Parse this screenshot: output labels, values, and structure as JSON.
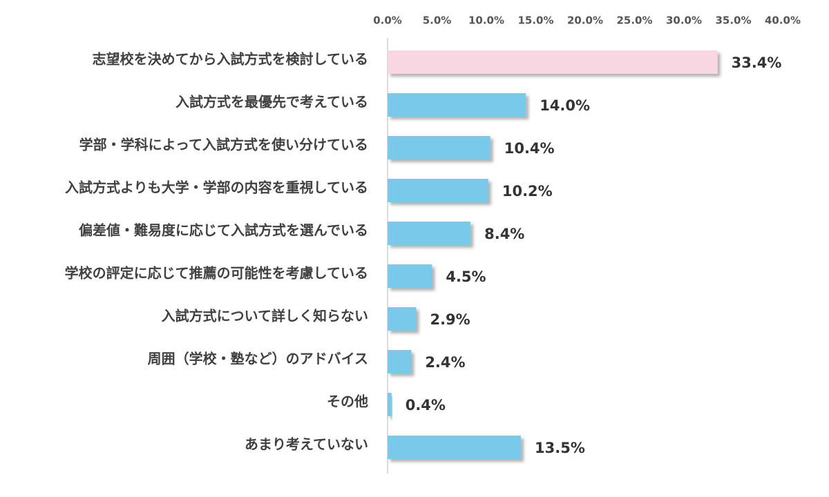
{
  "chart_data": {
    "type": "hbar",
    "categories": [
      "志望校を決めてから入試方式を検討している",
      "入試方式を最優先で考えている",
      "学部・学科によって入試方式を使い分けている",
      "入試方式よりも大学・学部の内容を重視している",
      "偏差値・難易度に応じて入試方式を選んでいる",
      "学校の評定に応じて推薦の可能性を考慮している",
      "入試方式について詳しく知らない",
      "周囲（学校・塾など）のアドバイス",
      "その他",
      "あまり考えていない"
    ],
    "values": [
      33.4,
      14.0,
      10.4,
      10.2,
      8.4,
      4.5,
      2.9,
      2.4,
      0.4,
      13.5
    ],
    "value_labels": [
      "33.4%",
      "14.0%",
      "10.4%",
      "10.2%",
      "8.4%",
      "4.5%",
      "2.9%",
      "2.4%",
      "0.4%",
      "13.5%"
    ],
    "colors": [
      "#f8d7e3",
      "#79c9eb",
      "#79c9eb",
      "#79c9eb",
      "#79c9eb",
      "#79c9eb",
      "#79c9eb",
      "#79c9eb",
      "#79c9eb",
      "#79c9eb"
    ],
    "xlim": [
      0,
      40
    ],
    "xticks": [
      {
        "value": 0,
        "label": "0.0%"
      },
      {
        "value": 5,
        "label": "5.0%"
      },
      {
        "value": 10,
        "label": "10.0%"
      },
      {
        "value": 15,
        "label": "15.0%"
      },
      {
        "value": 20,
        "label": "20.0%"
      },
      {
        "value": 25,
        "label": "25.0%"
      },
      {
        "value": 30,
        "label": "30.0%"
      },
      {
        "value": 35,
        "label": "35.0%"
      },
      {
        "value": 40,
        "label": "40.0%"
      }
    ],
    "grid": false
  }
}
